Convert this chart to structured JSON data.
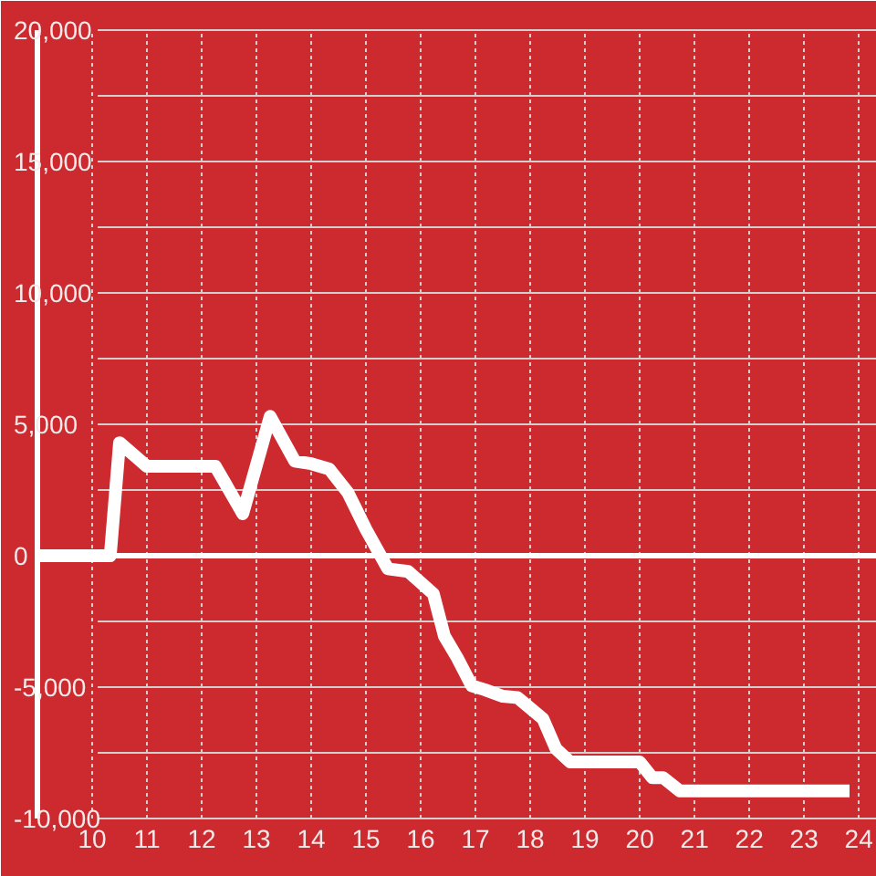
{
  "chart_data": {
    "type": "line",
    "x": [
      9,
      10.33,
      10.5,
      11,
      12.25,
      12.75,
      13.25,
      13.7,
      14,
      14.33,
      14.67,
      15,
      15.4,
      15.77,
      16.23,
      16.43,
      16.67,
      16.93,
      17.17,
      17.5,
      17.77,
      18.23,
      18.47,
      18.73,
      20,
      20.23,
      20.43,
      20.73,
      23.83
    ],
    "series": [
      {
        "color": "#ffffff",
        "values": [
          0,
          0,
          4300,
          3400,
          3400,
          1600,
          5300,
          3600,
          3500,
          3300,
          2400,
          1000,
          -500,
          -600,
          -1450,
          -3050,
          -3900,
          -4950,
          -5100,
          -5350,
          -5400,
          -6200,
          -7350,
          -7850,
          -7850,
          -8450,
          -8450,
          -8950,
          -8950
        ]
      }
    ],
    "xlim": [
      9,
      24.33
    ],
    "xticks": [
      10,
      11,
      12,
      13,
      14,
      15,
      16,
      17,
      18,
      19,
      20,
      21,
      22,
      23,
      24
    ],
    "ylim": [
      -10000,
      20000
    ],
    "yticks": [
      {
        "value": -10000,
        "label": "-10,000"
      },
      {
        "value": -7500,
        "label": null
      },
      {
        "value": -5000,
        "label": "-5,000"
      },
      {
        "value": -2500,
        "label": null
      },
      0,
      {
        "value": 2500,
        "label": null
      },
      {
        "value": 5000,
        "label": "5,000"
      },
      {
        "value": 7500,
        "label": null
      },
      {
        "value": 10000,
        "label": "10,000"
      },
      {
        "value": 12500,
        "label": null
      },
      {
        "value": 15000,
        "label": "15,000"
      },
      {
        "value": 17500,
        "label": null
      },
      {
        "value": 20000,
        "label": "20,000"
      }
    ],
    "grid": true,
    "ref_lines": [
      {
        "axis": "y",
        "value": 0,
        "color": "#ffffff"
      }
    ]
  }
}
